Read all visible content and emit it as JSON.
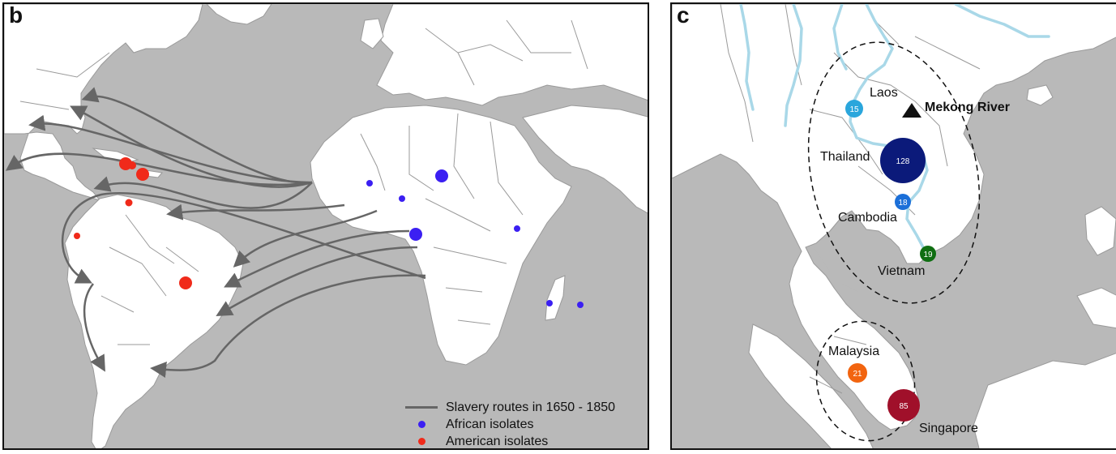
{
  "panel_b": {
    "letter": "b",
    "legend": {
      "routes_label": "Slavery routes in 1650 - 1850",
      "african_label": "African isolates",
      "american_label": "American isolates"
    },
    "colors": {
      "land": "#ffffff",
      "ocean": "#b9b9b9",
      "border": "#9a9a9a",
      "route": "#666666",
      "african": "#3b1ff2",
      "american": "#f02a1a"
    }
  },
  "panel_c": {
    "letter": "c",
    "countries": {
      "laos": "Laos",
      "thailand": "Thailand",
      "cambodia": "Cambodia",
      "vietnam": "Vietnam",
      "malaysia": "Malaysia",
      "singapore": "Singapore"
    },
    "mekong_label": "Mekong River",
    "counts": {
      "laos": "15",
      "thailand": "128",
      "cambodia": "18",
      "vietnam": "19",
      "malaysia": "21",
      "singapore": "85"
    },
    "colors": {
      "laos": "#2aa6dc",
      "thailand": "#0b1a7a",
      "cambodia": "#1b6fd8",
      "vietnam": "#0f6e12",
      "malaysia": "#f2640f",
      "singapore": "#a0102a",
      "river": "#a9d8e8"
    }
  }
}
